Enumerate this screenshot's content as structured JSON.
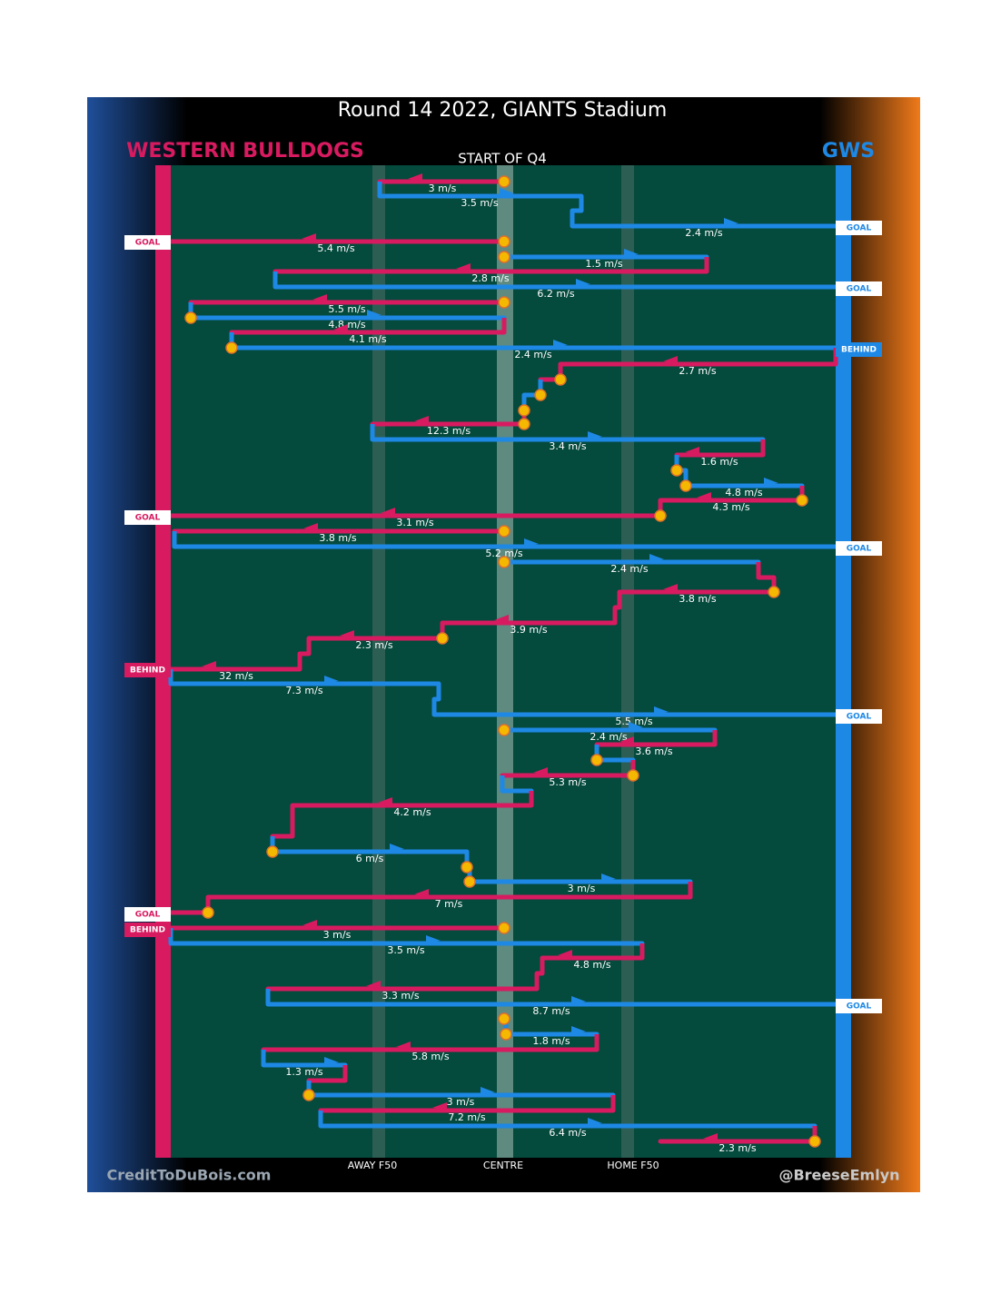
{
  "title": "Round 14 2022, GIANTS Stadium",
  "team_left": "WESTERN BULLDOGS",
  "team_right": "GWS",
  "quarter": "START OF Q4",
  "zones": [
    "AWAY F50",
    "CENTRE",
    "HOME F50"
  ],
  "credit_left": "CreditToDuBois.com",
  "credit_right": "@BreeseEmlyn",
  "moves": [
    {
      "speed": "3 m/s"
    },
    {
      "speed": "3.5 m/s"
    },
    {
      "speed": "2.4 m/s"
    },
    {
      "speed": "5.4 m/s"
    },
    {
      "speed": "1.5 m/s"
    },
    {
      "speed": "2.8 m/s"
    },
    {
      "speed": "6.2 m/s"
    },
    {
      "speed": "5.5 m/s"
    },
    {
      "speed": "4.8 m/s"
    },
    {
      "speed": "4.1 m/s"
    },
    {
      "speed": "2.4 m/s"
    },
    {
      "speed": "2.7 m/s"
    },
    {
      "speed": "12.3 m/s"
    },
    {
      "speed": "3.4 m/s"
    },
    {
      "speed": "1.6 m/s"
    },
    {
      "speed": "4.8 m/s"
    },
    {
      "speed": "4.3 m/s"
    },
    {
      "speed": "3.1 m/s"
    },
    {
      "speed": "3.8 m/s"
    },
    {
      "speed": "5.2 m/s"
    },
    {
      "speed": "2.4 m/s"
    },
    {
      "speed": "3.8 m/s"
    },
    {
      "speed": "3.9 m/s"
    },
    {
      "speed": "2.3 m/s"
    },
    {
      "speed": "32 m/s"
    },
    {
      "speed": "7.3 m/s"
    },
    {
      "speed": "5.5 m/s"
    },
    {
      "speed": "2.4 m/s"
    },
    {
      "speed": "3.6 m/s"
    },
    {
      "speed": "5.3 m/s"
    },
    {
      "speed": "4.2 m/s"
    },
    {
      "speed": "6 m/s"
    },
    {
      "speed": "3 m/s"
    },
    {
      "speed": "7 m/s"
    },
    {
      "speed": "3 m/s"
    },
    {
      "speed": "3.5 m/s"
    },
    {
      "speed": "4.8 m/s"
    },
    {
      "speed": "3.3 m/s"
    },
    {
      "speed": "8.7 m/s"
    },
    {
      "speed": "1.8 m/s"
    },
    {
      "speed": "5.8 m/s"
    },
    {
      "speed": "1.3 m/s"
    },
    {
      "speed": "3 m/s"
    },
    {
      "speed": "7.2 m/s"
    },
    {
      "speed": "6.4 m/s"
    },
    {
      "speed": "2.3 m/s"
    }
  ],
  "outcomes": [
    "GOAL",
    "GOAL",
    "GOAL",
    "BEHIND",
    "GOAL",
    "GOAL",
    "BEHIND",
    "GOAL",
    "GOAL",
    "BEHIND",
    "GOAL"
  ]
}
